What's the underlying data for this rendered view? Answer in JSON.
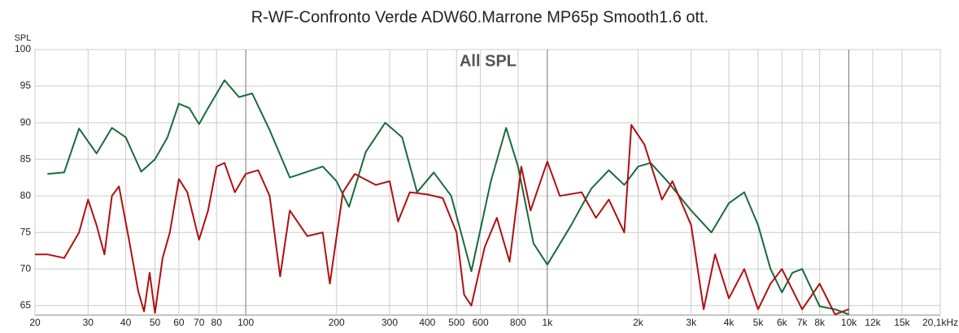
{
  "chart_data": {
    "type": "line",
    "title": "R-WF-Confronto Verde ADW60.Marrone MP65p Smooth1.6 ott.",
    "annotation": "All SPL",
    "y_label": "SPL",
    "log_x": true,
    "grid": true,
    "xlim": [
      20,
      20100
    ],
    "ylim": [
      63.7,
      100
    ],
    "xticks": [
      20,
      30,
      40,
      50,
      60,
      70,
      80,
      100,
      200,
      300,
      400,
      500,
      600,
      800,
      {
        "value": 1000,
        "label": "1k"
      },
      {
        "value": 2000,
        "label": "2k"
      },
      {
        "value": 3000,
        "label": "3k"
      },
      {
        "value": 4000,
        "label": "4k"
      },
      {
        "value": 5000,
        "label": "5k"
      },
      {
        "value": 6000,
        "label": "6k"
      },
      {
        "value": 7000,
        "label": "7k"
      },
      {
        "value": 8000,
        "label": "8k"
      },
      {
        "value": 10000,
        "label": "10k"
      },
      {
        "value": 12000,
        "label": "12k"
      },
      {
        "value": 15000,
        "label": "15k"
      },
      {
        "value": 20100,
        "label": "20,1kHz"
      }
    ],
    "yticks": [
      65,
      70,
      75,
      80,
      85,
      90,
      95,
      100
    ],
    "series": [
      {
        "color": "#1a6b3c",
        "x": [
          22,
          25,
          28,
          32,
          36,
          40,
          45,
          50,
          55,
          60,
          65,
          70,
          75,
          85,
          95,
          105,
          120,
          140,
          160,
          180,
          200,
          220,
          250,
          290,
          330,
          370,
          420,
          480,
          560,
          650,
          730,
          800,
          900,
          1000,
          1200,
          1400,
          1600,
          1800,
          2000,
          2200,
          2500,
          3000,
          3500,
          4000,
          4500,
          5000,
          5500,
          6000,
          6500,
          7000,
          8000,
          9000,
          10000
        ],
        "values": [
          83,
          83.2,
          89.2,
          85.8,
          89.3,
          88,
          83.3,
          85,
          88,
          92.6,
          92,
          89.8,
          92,
          95.8,
          93.5,
          94,
          89,
          82.5,
          83.3,
          84,
          82,
          78.5,
          86,
          90,
          88,
          80.5,
          83.2,
          80,
          69.7,
          82,
          89.3,
          84,
          73.5,
          70.6,
          76,
          81,
          83.5,
          81.5,
          84,
          84.5,
          82,
          78,
          75,
          79,
          80.5,
          76,
          70,
          66.8,
          69.5,
          70,
          64.9,
          64.5,
          63.8
        ]
      },
      {
        "color": "#b01010",
        "x": [
          20,
          22,
          25,
          28,
          30,
          32,
          34,
          36,
          38,
          41,
          44,
          46,
          48,
          50,
          53,
          56,
          60,
          64,
          70,
          75,
          80,
          85,
          92,
          100,
          110,
          120,
          130,
          140,
          160,
          180,
          190,
          210,
          230,
          270,
          300,
          320,
          350,
          400,
          450,
          500,
          530,
          560,
          620,
          680,
          750,
          820,
          880,
          950,
          1000,
          1100,
          1300,
          1450,
          1600,
          1800,
          1900,
          2100,
          2400,
          2600,
          3000,
          3300,
          3600,
          4000,
          4500,
          5000,
          5500,
          6000,
          7000,
          8000,
          9000,
          10000
        ],
        "values": [
          72,
          72,
          71.5,
          75,
          79.5,
          76,
          72,
          80,
          81.3,
          74,
          67,
          64.2,
          69.5,
          64,
          71.5,
          75,
          82.3,
          80.5,
          74,
          78,
          84,
          84.5,
          80.5,
          83,
          83.5,
          80,
          69,
          78,
          74.5,
          75,
          68,
          80.5,
          83,
          81.5,
          82,
          76.5,
          80.5,
          80.2,
          79.7,
          75,
          66.5,
          65,
          73,
          77,
          71,
          84,
          78,
          82,
          84.7,
          80,
          80.5,
          77,
          79.5,
          75,
          89.7,
          87,
          79.5,
          82,
          76,
          64.5,
          72,
          66,
          70,
          64.5,
          68,
          70,
          64.5,
          68,
          63.8,
          64.5
        ]
      }
    ]
  }
}
